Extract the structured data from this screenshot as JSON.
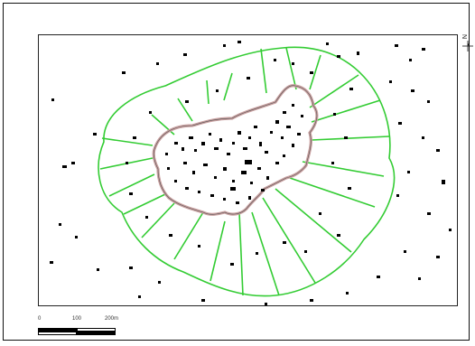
{
  "map": {
    "north_label": "N",
    "scale": {
      "ticks": [
        "0",
        "100",
        "200m"
      ]
    },
    "colors": {
      "zone_lines": "#33cc33",
      "settlement_outline": "#c9a0a0",
      "buildings": "#000000",
      "frame": "#222222"
    }
  }
}
